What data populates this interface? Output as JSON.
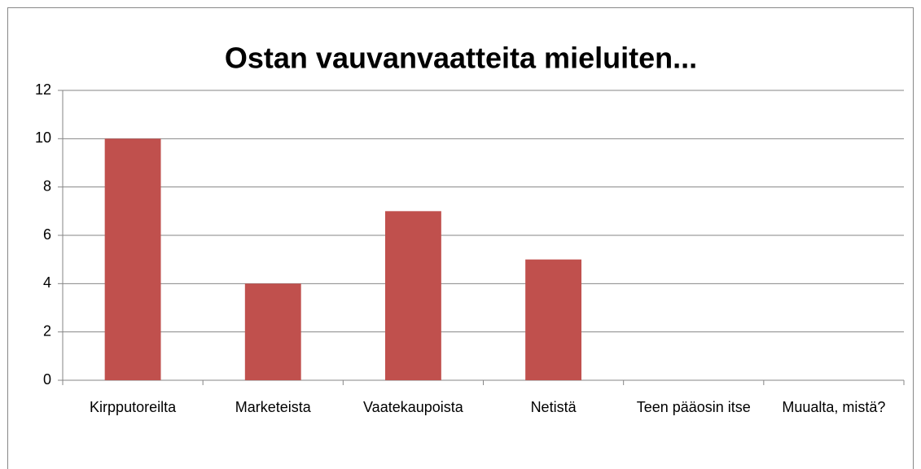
{
  "chart_data": {
    "type": "bar",
    "title": "Ostan vauvanvaatteita mieluiten...",
    "categories": [
      "Kirpputoreilta",
      "Marketeista",
      "Vaatekaupoista",
      "Netistä",
      "Teen pääosin itse",
      "Muualta, mistä?"
    ],
    "values": [
      10,
      4,
      7,
      5,
      0,
      0
    ],
    "color": "#c0504d",
    "ylim": [
      0,
      12
    ],
    "yticks": [
      0,
      2,
      4,
      6,
      8,
      10,
      12
    ],
    "grid": true
  }
}
